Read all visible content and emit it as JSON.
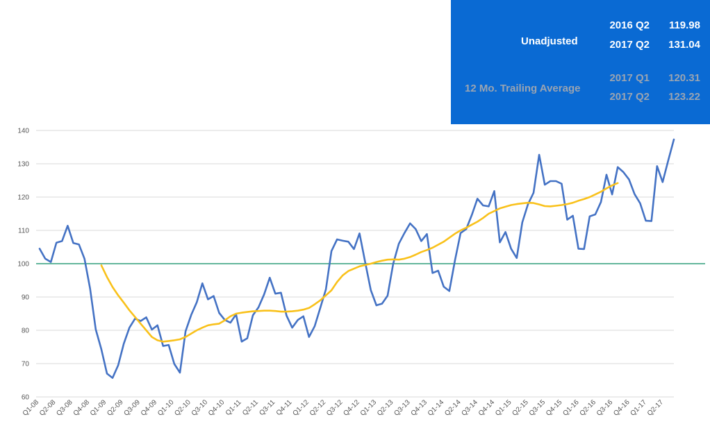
{
  "summary_box": {
    "unadjusted_label": "Unadjusted",
    "unadjusted_rows": [
      {
        "quarter": "2016 Q2",
        "value": "119.98"
      },
      {
        "quarter": "2017 Q2",
        "value": "131.04"
      }
    ],
    "trailing_label": "12 Mo. Trailing Average",
    "trailing_rows": [
      {
        "quarter": "2017 Q1",
        "value": "120.31"
      },
      {
        "quarter": "2017 Q2",
        "value": "123.22"
      }
    ]
  },
  "chart_data": {
    "type": "line",
    "x_tick_labels": [
      "Q1-08",
      "Q2-08",
      "Q3-08",
      "Q4-08",
      "Q1-09",
      "Q2-09",
      "Q3-09",
      "Q4-09",
      "Q1-10",
      "Q2-10",
      "Q3-10",
      "Q4-10",
      "Q1-11",
      "Q2-11",
      "Q3-11",
      "Q4-11",
      "Q1-12",
      "Q2-12",
      "Q3-12",
      "Q4-12",
      "Q1-13",
      "Q2-13",
      "Q3-13",
      "Q4-13",
      "Q1-14",
      "Q2-14",
      "Q3-14",
      "Q4-14",
      "Q1-15",
      "Q2-15",
      "Q3-15",
      "Q4-15",
      "Q1-16",
      "Q2-16",
      "Q3-16",
      "Q4-16",
      "Q1-17",
      "Q2-17"
    ],
    "y_ticks": [
      60,
      70,
      80,
      90,
      100,
      110,
      120,
      130,
      140
    ],
    "ylim": [
      60,
      140
    ],
    "grid": true,
    "reference_line": {
      "y": 100,
      "color": "#2e9e7a"
    },
    "series": [
      {
        "color": "#4472c4",
        "values": [
          104.5,
          101.5,
          100.5,
          106.3,
          106.8,
          111.4,
          106.2,
          105.8,
          101.5,
          92.5,
          80.3,
          74.3,
          67.0,
          65.7,
          69.5,
          76.0,
          80.8,
          83.5,
          82.8,
          83.9,
          80.2,
          81.5,
          75.3,
          75.6,
          69.9,
          67.3,
          79.7,
          84.6,
          88.4,
          94.1,
          89.3,
          90.3,
          85.2,
          83.1,
          82.3,
          84.8,
          76.6,
          77.6,
          84.5,
          86.9,
          90.8,
          95.8,
          91.0,
          91.3,
          84.4,
          80.8,
          83.1,
          84.2,
          78.0,
          81.2,
          86.7,
          92.3,
          103.8,
          107.3,
          106.9,
          106.6,
          104.4,
          109.1,
          100.5,
          92.1,
          87.5,
          88.0,
          90.4,
          100.0,
          106.0,
          109.2,
          112.1,
          110.4,
          106.8,
          108.9,
          97.2,
          97.9,
          93.1,
          91.8,
          101.0,
          109.2,
          110.4,
          114.6,
          119.5,
          117.5,
          117.2,
          121.8,
          106.4,
          109.5,
          104.5,
          101.7,
          112.4,
          117.8,
          121.3,
          132.7,
          123.7,
          124.8,
          124.8,
          124.0,
          113.2,
          114.4,
          104.5,
          104.4,
          114.2,
          114.8,
          118.5,
          126.7,
          120.8,
          129.0,
          127.5,
          125.3,
          120.9,
          118.1,
          112.9,
          112.8,
          129.3,
          124.5,
          131.0,
          137.3
        ]
      },
      {
        "color": "#f9c11a",
        "start_index": 11,
        "values": [
          99.5,
          96.0,
          93.0,
          90.5,
          88.3,
          86.0,
          84.0,
          82.0,
          80.0,
          78.0,
          77.0,
          76.6,
          76.8,
          77.0,
          77.3,
          78.0,
          79.0,
          80.0,
          80.8,
          81.5,
          81.8,
          82.0,
          83.0,
          84.2,
          85.0,
          85.3,
          85.5,
          85.7,
          85.8,
          85.9,
          85.9,
          85.8,
          85.6,
          85.6,
          85.7,
          85.9,
          86.2,
          86.7,
          87.8,
          89.0,
          90.5,
          92.0,
          94.5,
          96.5,
          97.8,
          98.5,
          99.2,
          99.6,
          100.0,
          100.5,
          100.9,
          101.2,
          101.3,
          101.2,
          101.5,
          102.0,
          102.7,
          103.5,
          104.1,
          104.8,
          105.7,
          106.6,
          107.8,
          109.0,
          110.0,
          110.8,
          111.7,
          112.6,
          113.7,
          115.0,
          115.8,
          116.6,
          117.1,
          117.6,
          117.9,
          118.1,
          118.3,
          118.2,
          117.8,
          117.3,
          117.2,
          117.4,
          117.6,
          117.9,
          118.3,
          118.9,
          119.4,
          120.0,
          120.8,
          121.6,
          122.6,
          123.5,
          124.2
        ]
      }
    ]
  }
}
